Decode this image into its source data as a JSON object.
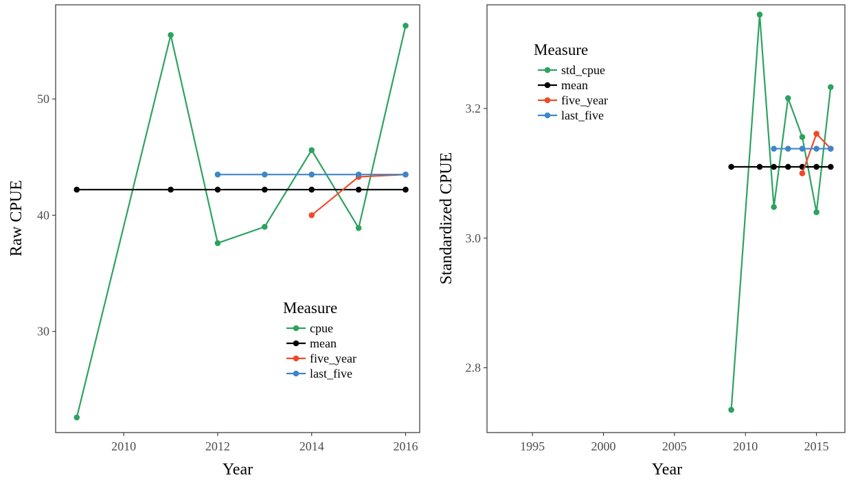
{
  "colors": {
    "cpue": "#2ca25f",
    "mean": "#000000",
    "five_year": "#ef4a27",
    "last_five": "#3f85c8",
    "panel_border": "#333333",
    "tick_text": "#4d4d4d"
  },
  "chart_data": [
    {
      "type": "line",
      "xlabel": "Year",
      "ylabel": "Raw CPUE",
      "xlim": [
        2008.55,
        2016.3
      ],
      "ylim": [
        21.3,
        58.1
      ],
      "xticks": [
        2010,
        2012,
        2014,
        2016
      ],
      "xtick_labels": [
        "2010",
        "2012",
        "2014",
        "2016"
      ],
      "yticks": [
        30,
        40,
        50
      ],
      "ytick_labels": [
        "30",
        "40",
        "50"
      ],
      "grid": false,
      "legend": {
        "title": "Measure",
        "position": "bottom-right",
        "entries": [
          "cpue",
          "mean",
          "five_year",
          "last_five"
        ]
      },
      "series": [
        {
          "name": "cpue",
          "x": [
            2009,
            2011,
            2012,
            2013,
            2014,
            2015,
            2016
          ],
          "y": [
            22.6,
            55.5,
            37.6,
            39.0,
            45.6,
            38.9,
            56.3
          ]
        },
        {
          "name": "mean",
          "x": [
            2009,
            2011,
            2012,
            2013,
            2014,
            2015,
            2016
          ],
          "y": [
            42.2,
            42.2,
            42.2,
            42.2,
            42.2,
            42.2,
            42.2
          ]
        },
        {
          "name": "five_year",
          "x": [
            2014,
            2015,
            2016
          ],
          "y": [
            40.0,
            43.3,
            43.5
          ]
        },
        {
          "name": "last_five",
          "x": [
            2012,
            2013,
            2014,
            2015,
            2016
          ],
          "y": [
            43.5,
            43.5,
            43.5,
            43.5,
            43.5
          ]
        }
      ]
    },
    {
      "type": "line",
      "xlabel": "Year",
      "ylabel": "Standardized CPUE",
      "xlim": [
        1991.8,
        2017.0
      ],
      "ylim": [
        2.7,
        3.36
      ],
      "xticks": [
        1995,
        2000,
        2005,
        2010,
        2015
      ],
      "xtick_labels": [
        "1995",
        "2000",
        "2005",
        "2010",
        "2015"
      ],
      "yticks": [
        2.8,
        3.0,
        3.2
      ],
      "ytick_labels": [
        "2.8",
        "3.0",
        "3.2"
      ],
      "grid": false,
      "legend": {
        "title": "Measure",
        "position": "top-left",
        "entries": [
          "std_cpue",
          "mean",
          "five_year",
          "last_five"
        ]
      },
      "series": [
        {
          "name": "std_cpue",
          "x": [
            2009,
            2011,
            2012,
            2013,
            2014,
            2015,
            2016
          ],
          "y": [
            2.735,
            3.345,
            3.048,
            3.216,
            3.156,
            3.04,
            3.233
          ]
        },
        {
          "name": "mean",
          "x": [
            2009,
            2011,
            2012,
            2013,
            2014,
            2015,
            2016
          ],
          "y": [
            3.11,
            3.11,
            3.11,
            3.11,
            3.11,
            3.11,
            3.11
          ]
        },
        {
          "name": "five_year",
          "x": [
            2014,
            2015,
            2016
          ],
          "y": [
            3.1,
            3.161,
            3.138
          ]
        },
        {
          "name": "last_five",
          "x": [
            2012,
            2013,
            2014,
            2015,
            2016
          ],
          "y": [
            3.138,
            3.138,
            3.138,
            3.138,
            3.138
          ]
        }
      ]
    }
  ]
}
